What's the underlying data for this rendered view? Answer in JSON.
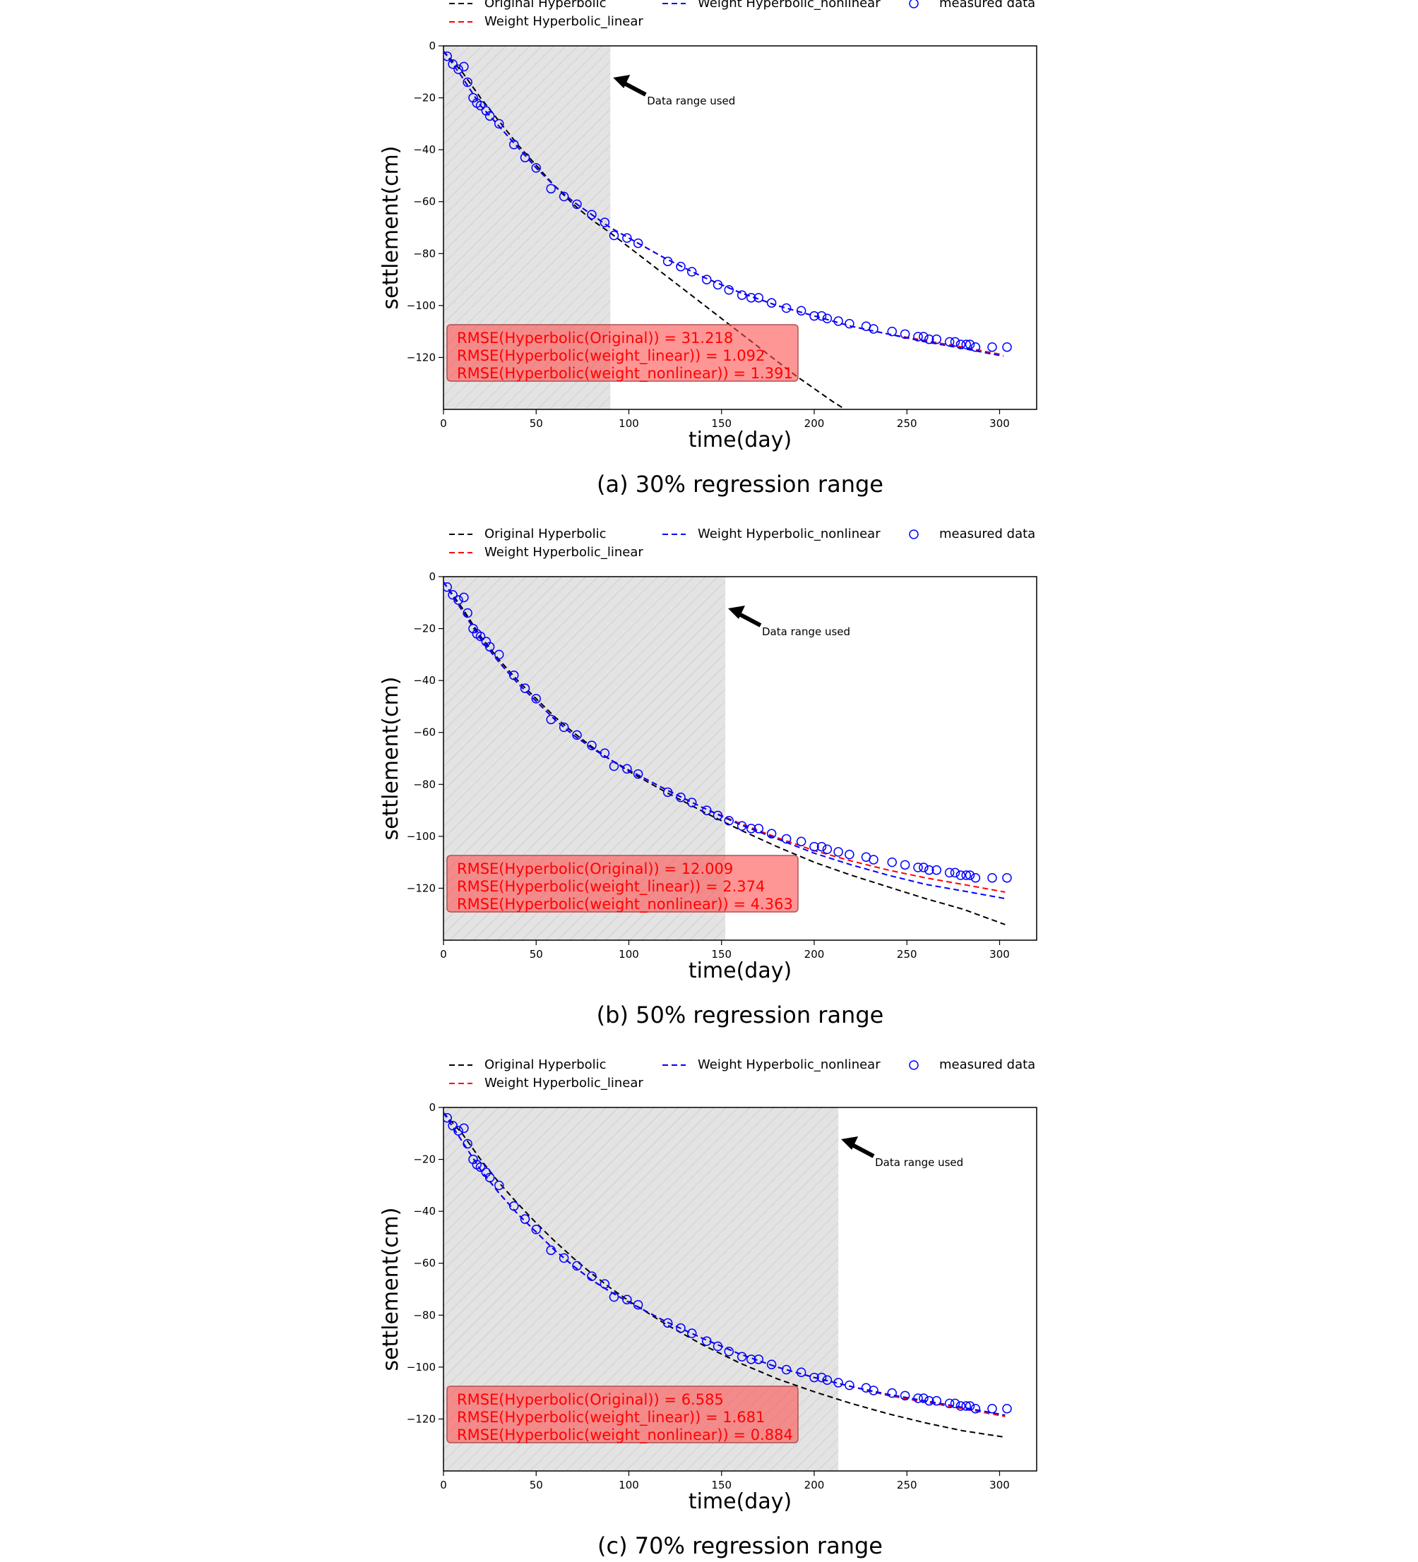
{
  "chart_data": [
    {
      "type": "line",
      "caption": "(a) 30% regression range",
      "xlabel": "time(day)",
      "ylabel": "settlement(cm)",
      "xlim": [
        0,
        320
      ],
      "ylim": [
        -140,
        0
      ],
      "xticks": [
        0,
        50,
        100,
        150,
        200,
        250,
        300
      ],
      "yticks": [
        0,
        -20,
        -40,
        -60,
        -80,
        -100,
        -120
      ],
      "grid": false,
      "legend_position": "top",
      "data_range_end": 90,
      "annotation": "Data range used",
      "legend": [
        {
          "label": "Original Hyperbolic",
          "color": "#000000",
          "style": "dashed"
        },
        {
          "label": "Weight Hyperbolic_linear",
          "color": "#ff0000",
          "style": "dashed"
        },
        {
          "label": "Weight Hyperbolic_nonlinear",
          "color": "#0000ff",
          "style": "dashed"
        },
        {
          "label": "measured data",
          "color": "#0000ff",
          "style": "marker"
        }
      ],
      "rmse": [
        "RMSE(Hyperbolic(Original)) = 31.218",
        "RMSE(Hyperbolic(weight_linear)) = 1.092",
        "RMSE(Hyperbolic(weight_nonlinear)) = 1.391"
      ],
      "series": [
        {
          "name": "Original Hyperbolic",
          "color": "#000000",
          "x": [
            0,
            10,
            20,
            30,
            40,
            50,
            60,
            70,
            80,
            90,
            100,
            110,
            120,
            130,
            140,
            150,
            160,
            170,
            180,
            190,
            200,
            210,
            220,
            230
          ],
          "y": [
            -2,
            -10,
            -20,
            -29,
            -38,
            -46,
            -54,
            -61,
            -67,
            -72,
            -77.5,
            -83,
            -88.5,
            -94,
            -99.5,
            -105,
            -110.5,
            -116,
            -121.5,
            -127,
            -132,
            -137,
            -141.5,
            -145
          ]
        },
        {
          "name": "Weight Hyperbolic_linear",
          "color": "#ff0000",
          "x": [
            0,
            10,
            20,
            30,
            40,
            50,
            60,
            70,
            80,
            90,
            100,
            120,
            140,
            160,
            180,
            200,
            220,
            240,
            260,
            280,
            302
          ],
          "y": [
            -2,
            -12,
            -23,
            -31,
            -39,
            -47,
            -54,
            -60,
            -65,
            -70,
            -74,
            -82,
            -89,
            -95,
            -100,
            -104,
            -108,
            -111,
            -113.5,
            -116,
            -119
          ]
        },
        {
          "name": "Weight Hyperbolic_nonlinear",
          "color": "#0000ff",
          "x": [
            0,
            10,
            20,
            30,
            40,
            50,
            60,
            70,
            80,
            90,
            100,
            120,
            140,
            160,
            180,
            200,
            220,
            240,
            260,
            280,
            302
          ],
          "y": [
            -2,
            -12,
            -23,
            -31,
            -39,
            -47,
            -54,
            -60,
            -65,
            -70,
            -74,
            -82,
            -89,
            -95,
            -100,
            -104,
            -108,
            -111,
            -114,
            -116.5,
            -119.5
          ]
        }
      ]
    },
    {
      "type": "line",
      "caption": "(b) 50% regression range",
      "xlabel": "time(day)",
      "ylabel": "settlement(cm)",
      "xlim": [
        0,
        320
      ],
      "ylim": [
        -140,
        0
      ],
      "xticks": [
        0,
        50,
        100,
        150,
        200,
        250,
        300
      ],
      "yticks": [
        0,
        -20,
        -40,
        -60,
        -80,
        -100,
        -120
      ],
      "grid": false,
      "legend_position": "top",
      "data_range_end": 152,
      "annotation": "Data range used",
      "legend": [
        {
          "label": "Original Hyperbolic",
          "color": "#000000",
          "style": "dashed"
        },
        {
          "label": "Weight Hyperbolic_linear",
          "color": "#ff0000",
          "style": "dashed"
        },
        {
          "label": "Weight Hyperbolic_nonlinear",
          "color": "#0000ff",
          "style": "dashed"
        },
        {
          "label": "measured data",
          "color": "#0000ff",
          "style": "marker"
        }
      ],
      "rmse": [
        "RMSE(Hyperbolic(Original)) = 12.009",
        "RMSE(Hyperbolic(weight_linear)) = 2.374",
        "RMSE(Hyperbolic(weight_nonlinear)) = 4.363"
      ],
      "series": [
        {
          "name": "Original Hyperbolic",
          "color": "#000000",
          "x": [
            0,
            10,
            20,
            30,
            40,
            50,
            60,
            70,
            80,
            90,
            100,
            120,
            140,
            160,
            180,
            200,
            220,
            240,
            260,
            280,
            303
          ],
          "y": [
            -2,
            -12,
            -23,
            -32,
            -40,
            -47,
            -54,
            -60,
            -65.5,
            -70.5,
            -75,
            -83,
            -90.5,
            -97.5,
            -104,
            -110,
            -115,
            -119.5,
            -124,
            -128,
            -134
          ]
        },
        {
          "name": "Weight Hyperbolic_linear",
          "color": "#ff0000",
          "x": [
            0,
            10,
            20,
            30,
            40,
            50,
            60,
            70,
            80,
            90,
            100,
            120,
            140,
            160,
            180,
            200,
            220,
            240,
            260,
            280,
            303
          ],
          "y": [
            -2,
            -13,
            -24,
            -33,
            -41,
            -48,
            -55,
            -61,
            -66,
            -70.5,
            -74.5,
            -82,
            -89,
            -95,
            -100.5,
            -105.5,
            -109.5,
            -113,
            -116,
            -118.5,
            -121.5
          ]
        },
        {
          "name": "Weight Hyperbolic_nonlinear",
          "color": "#0000ff",
          "x": [
            0,
            10,
            20,
            30,
            40,
            50,
            60,
            70,
            80,
            90,
            100,
            120,
            140,
            160,
            180,
            200,
            220,
            240,
            260,
            280,
            303
          ],
          "y": [
            -2,
            -13,
            -24,
            -33,
            -41,
            -48,
            -55,
            -61,
            -66,
            -70.5,
            -74.5,
            -82,
            -89,
            -95.5,
            -101,
            -106.5,
            -111,
            -115,
            -118.5,
            -121,
            -124
          ]
        }
      ]
    },
    {
      "type": "line",
      "caption": "(c) 70% regression range",
      "xlabel": "time(day)",
      "ylabel": "settlement(cm)",
      "xlim": [
        0,
        320
      ],
      "ylim": [
        -140,
        0
      ],
      "xticks": [
        0,
        50,
        100,
        150,
        200,
        250,
        300
      ],
      "yticks": [
        0,
        -20,
        -40,
        -60,
        -80,
        -100,
        -120
      ],
      "grid": false,
      "legend_position": "top",
      "data_range_end": 213,
      "annotation": "Data range used",
      "legend": [
        {
          "label": "Original Hyperbolic",
          "color": "#000000",
          "style": "dashed"
        },
        {
          "label": "Weight Hyperbolic_linear",
          "color": "#ff0000",
          "style": "dashed"
        },
        {
          "label": "Weight Hyperbolic_nonlinear",
          "color": "#0000ff",
          "style": "dashed"
        },
        {
          "label": "measured data",
          "color": "#0000ff",
          "style": "marker"
        }
      ],
      "rmse": [
        "RMSE(Hyperbolic(Original)) = 6.585",
        "RMSE(Hyperbolic(weight_linear)) = 1.681",
        "RMSE(Hyperbolic(weight_nonlinear)) = 0.884"
      ],
      "series": [
        {
          "name": "Original Hyperbolic",
          "color": "#000000",
          "x": [
            0,
            10,
            20,
            30,
            40,
            50,
            60,
            70,
            80,
            90,
            100,
            120,
            140,
            160,
            180,
            200,
            220,
            240,
            260,
            280,
            303
          ],
          "y": [
            -2,
            -10,
            -20,
            -29,
            -37,
            -44.5,
            -51.5,
            -58,
            -64,
            -69.5,
            -74.5,
            -83.5,
            -91.5,
            -98.5,
            -104.5,
            -109.5,
            -114,
            -118,
            -121.5,
            -124.5,
            -127
          ]
        },
        {
          "name": "Weight Hyperbolic_linear",
          "color": "#ff0000",
          "x": [
            0,
            10,
            20,
            30,
            40,
            50,
            60,
            70,
            80,
            90,
            100,
            120,
            140,
            160,
            180,
            200,
            220,
            240,
            260,
            280,
            303
          ],
          "y": [
            -2,
            -13,
            -24,
            -33,
            -41,
            -48,
            -55,
            -61,
            -66.5,
            -71,
            -75,
            -82.5,
            -89,
            -95,
            -100,
            -104,
            -107.5,
            -111,
            -113.5,
            -116,
            -119
          ]
        },
        {
          "name": "Weight Hyperbolic_nonlinear",
          "color": "#0000ff",
          "x": [
            0,
            10,
            20,
            30,
            40,
            50,
            60,
            70,
            80,
            90,
            100,
            120,
            140,
            160,
            180,
            200,
            220,
            240,
            260,
            280,
            303
          ],
          "y": [
            -2,
            -13,
            -24,
            -33,
            -41,
            -48,
            -55,
            -61,
            -66.5,
            -71,
            -75,
            -82.5,
            -89,
            -95,
            -100,
            -104,
            -107.5,
            -110.5,
            -113,
            -115.5,
            -118.5
          ]
        }
      ]
    }
  ],
  "measured_data": {
    "name": "measured data",
    "color": "#0000ff",
    "x": [
      2,
      5,
      8,
      11,
      13,
      16,
      18,
      20,
      23,
      25,
      30,
      38,
      44,
      50,
      58,
      65,
      72,
      80,
      87,
      92,
      99,
      105,
      121,
      128,
      134,
      142,
      148,
      154,
      161,
      166,
      170,
      177,
      185,
      193,
      200,
      204,
      207,
      213,
      219,
      228,
      232,
      242,
      249,
      256,
      259,
      262,
      266,
      273,
      276,
      279,
      282,
      284,
      287,
      296,
      304
    ],
    "y": [
      -4,
      -7,
      -9,
      -8,
      -14,
      -20,
      -22,
      -23,
      -25,
      -27,
      -30,
      -38,
      -43,
      -47,
      -55,
      -58,
      -61,
      -65,
      -68,
      -73,
      -74,
      -76,
      -83,
      -85,
      -87,
      -90,
      -92,
      -94,
      -96,
      -97,
      -97,
      -99,
      -101,
      -102,
      -104,
      -104,
      -105,
      -106,
      -107,
      -108,
      -109,
      -110,
      -111,
      -112,
      -112,
      -113,
      -113,
      -114,
      -114,
      -115,
      -115,
      -115,
      -116,
      -116,
      -116
    ]
  }
}
